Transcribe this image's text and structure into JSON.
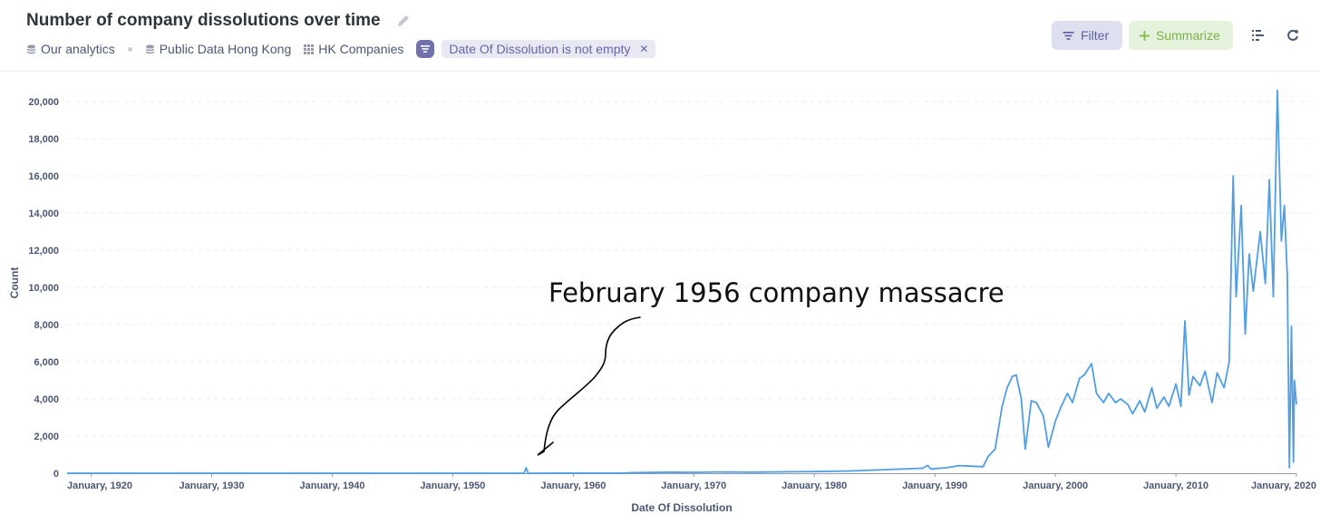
{
  "header": {
    "title": "Number of company dissolutions over time",
    "breadcrumbs": [
      "Our analytics",
      "Public Data Hong Kong",
      "HK Companies"
    ],
    "filter_pill": "Date Of Dissolution is not empty",
    "buttons": {
      "filter": "Filter",
      "summarize": "Summarize"
    },
    "icons": [
      "pencil-icon",
      "database-icon",
      "table-grid-icon",
      "filter-icon",
      "close-icon",
      "display-options-icon",
      "refresh-icon"
    ]
  },
  "colors": {
    "line": "#509ee3",
    "filter": "#7172ad",
    "summarize": "#84bb4c"
  },
  "annotation": {
    "text": "February 1956 company massacre"
  },
  "chart_data": {
    "type": "line",
    "xlabel": "Date Of Dissolution",
    "ylabel": "Count",
    "xlim": [
      "1918-01",
      "2020-01"
    ],
    "ylim": [
      0,
      20000
    ],
    "x_ticks": [
      "January, 1920",
      "January, 1930",
      "January, 1940",
      "January, 1950",
      "January, 1960",
      "January, 1970",
      "January, 1980",
      "January, 1990",
      "January, 2000",
      "January, 2010",
      "January, 2020"
    ],
    "y_ticks": [
      "0",
      "2,000",
      "4,000",
      "6,000",
      "8,000",
      "10,000",
      "12,000",
      "14,000",
      "16,000",
      "18,000",
      "20,000"
    ],
    "grid": true,
    "series": [
      {
        "points": [
          [
            "1918-01",
            0
          ],
          [
            "1955-12",
            0
          ],
          [
            "1956-02",
            300
          ],
          [
            "1956-04",
            0
          ],
          [
            "1964-01",
            5
          ],
          [
            "1965-01",
            30
          ],
          [
            "1968-01",
            60
          ],
          [
            "1970-01",
            50
          ],
          [
            "1972-01",
            70
          ],
          [
            "1975-01",
            60
          ],
          [
            "1978-01",
            80
          ],
          [
            "1980-01",
            90
          ],
          [
            "1983-01",
            120
          ],
          [
            "1985-01",
            170
          ],
          [
            "1987-01",
            220
          ],
          [
            "1989-01",
            270
          ],
          [
            "1989-06",
            420
          ],
          [
            "1989-09",
            230
          ],
          [
            "1991-01",
            300
          ],
          [
            "1992-01",
            410
          ],
          [
            "1993-01",
            380
          ],
          [
            "1994-01",
            350
          ],
          [
            "1994-06",
            900
          ],
          [
            "1995-01",
            1300
          ],
          [
            "1995-04",
            2300
          ],
          [
            "1995-08",
            3600
          ],
          [
            "1996-01",
            4600
          ],
          [
            "1996-06",
            5200
          ],
          [
            "1996-10",
            5300
          ],
          [
            "1997-03",
            4000
          ],
          [
            "1997-07",
            1300
          ],
          [
            "1998-01",
            3900
          ],
          [
            "1998-06",
            3800
          ],
          [
            "1999-01",
            3100
          ],
          [
            "1999-06",
            1400
          ],
          [
            "2000-01",
            2800
          ],
          [
            "2000-06",
            3500
          ],
          [
            "2001-01",
            4300
          ],
          [
            "2001-06",
            3800
          ],
          [
            "2002-01",
            5100
          ],
          [
            "2002-06",
            5300
          ],
          [
            "2003-01",
            5900
          ],
          [
            "2003-06",
            4300
          ],
          [
            "2004-01",
            3800
          ],
          [
            "2004-06",
            4300
          ],
          [
            "2005-01",
            3800
          ],
          [
            "2005-06",
            4000
          ],
          [
            "2006-01",
            3700
          ],
          [
            "2006-06",
            3200
          ],
          [
            "2007-01",
            3900
          ],
          [
            "2007-06",
            3300
          ],
          [
            "2008-01",
            4600
          ],
          [
            "2008-06",
            3500
          ],
          [
            "2009-01",
            4100
          ],
          [
            "2009-06",
            3600
          ],
          [
            "2010-01",
            4800
          ],
          [
            "2010-06",
            3600
          ],
          [
            "2010-10",
            8200
          ],
          [
            "2011-02",
            4200
          ],
          [
            "2011-06",
            5200
          ],
          [
            "2012-01",
            4700
          ],
          [
            "2012-06",
            5500
          ],
          [
            "2013-01",
            3800
          ],
          [
            "2013-06",
            5400
          ],
          [
            "2014-01",
            4600
          ],
          [
            "2014-06",
            6000
          ],
          [
            "2014-10",
            16000
          ],
          [
            "2015-01",
            9500
          ],
          [
            "2015-06",
            14400
          ],
          [
            "2015-10",
            7500
          ],
          [
            "2016-02",
            11800
          ],
          [
            "2016-06",
            9800
          ],
          [
            "2017-01",
            13000
          ],
          [
            "2017-06",
            10200
          ],
          [
            "2017-10",
            15800
          ],
          [
            "2018-02",
            9500
          ],
          [
            "2018-06",
            20600
          ],
          [
            "2018-10",
            12500
          ],
          [
            "2019-01",
            14400
          ],
          [
            "2019-04",
            10500
          ],
          [
            "2019-06",
            300
          ],
          [
            "2019-08",
            7900
          ],
          [
            "2019-10",
            600
          ],
          [
            "2019-11",
            5000
          ],
          [
            "2020-01",
            3700
          ]
        ]
      }
    ]
  }
}
